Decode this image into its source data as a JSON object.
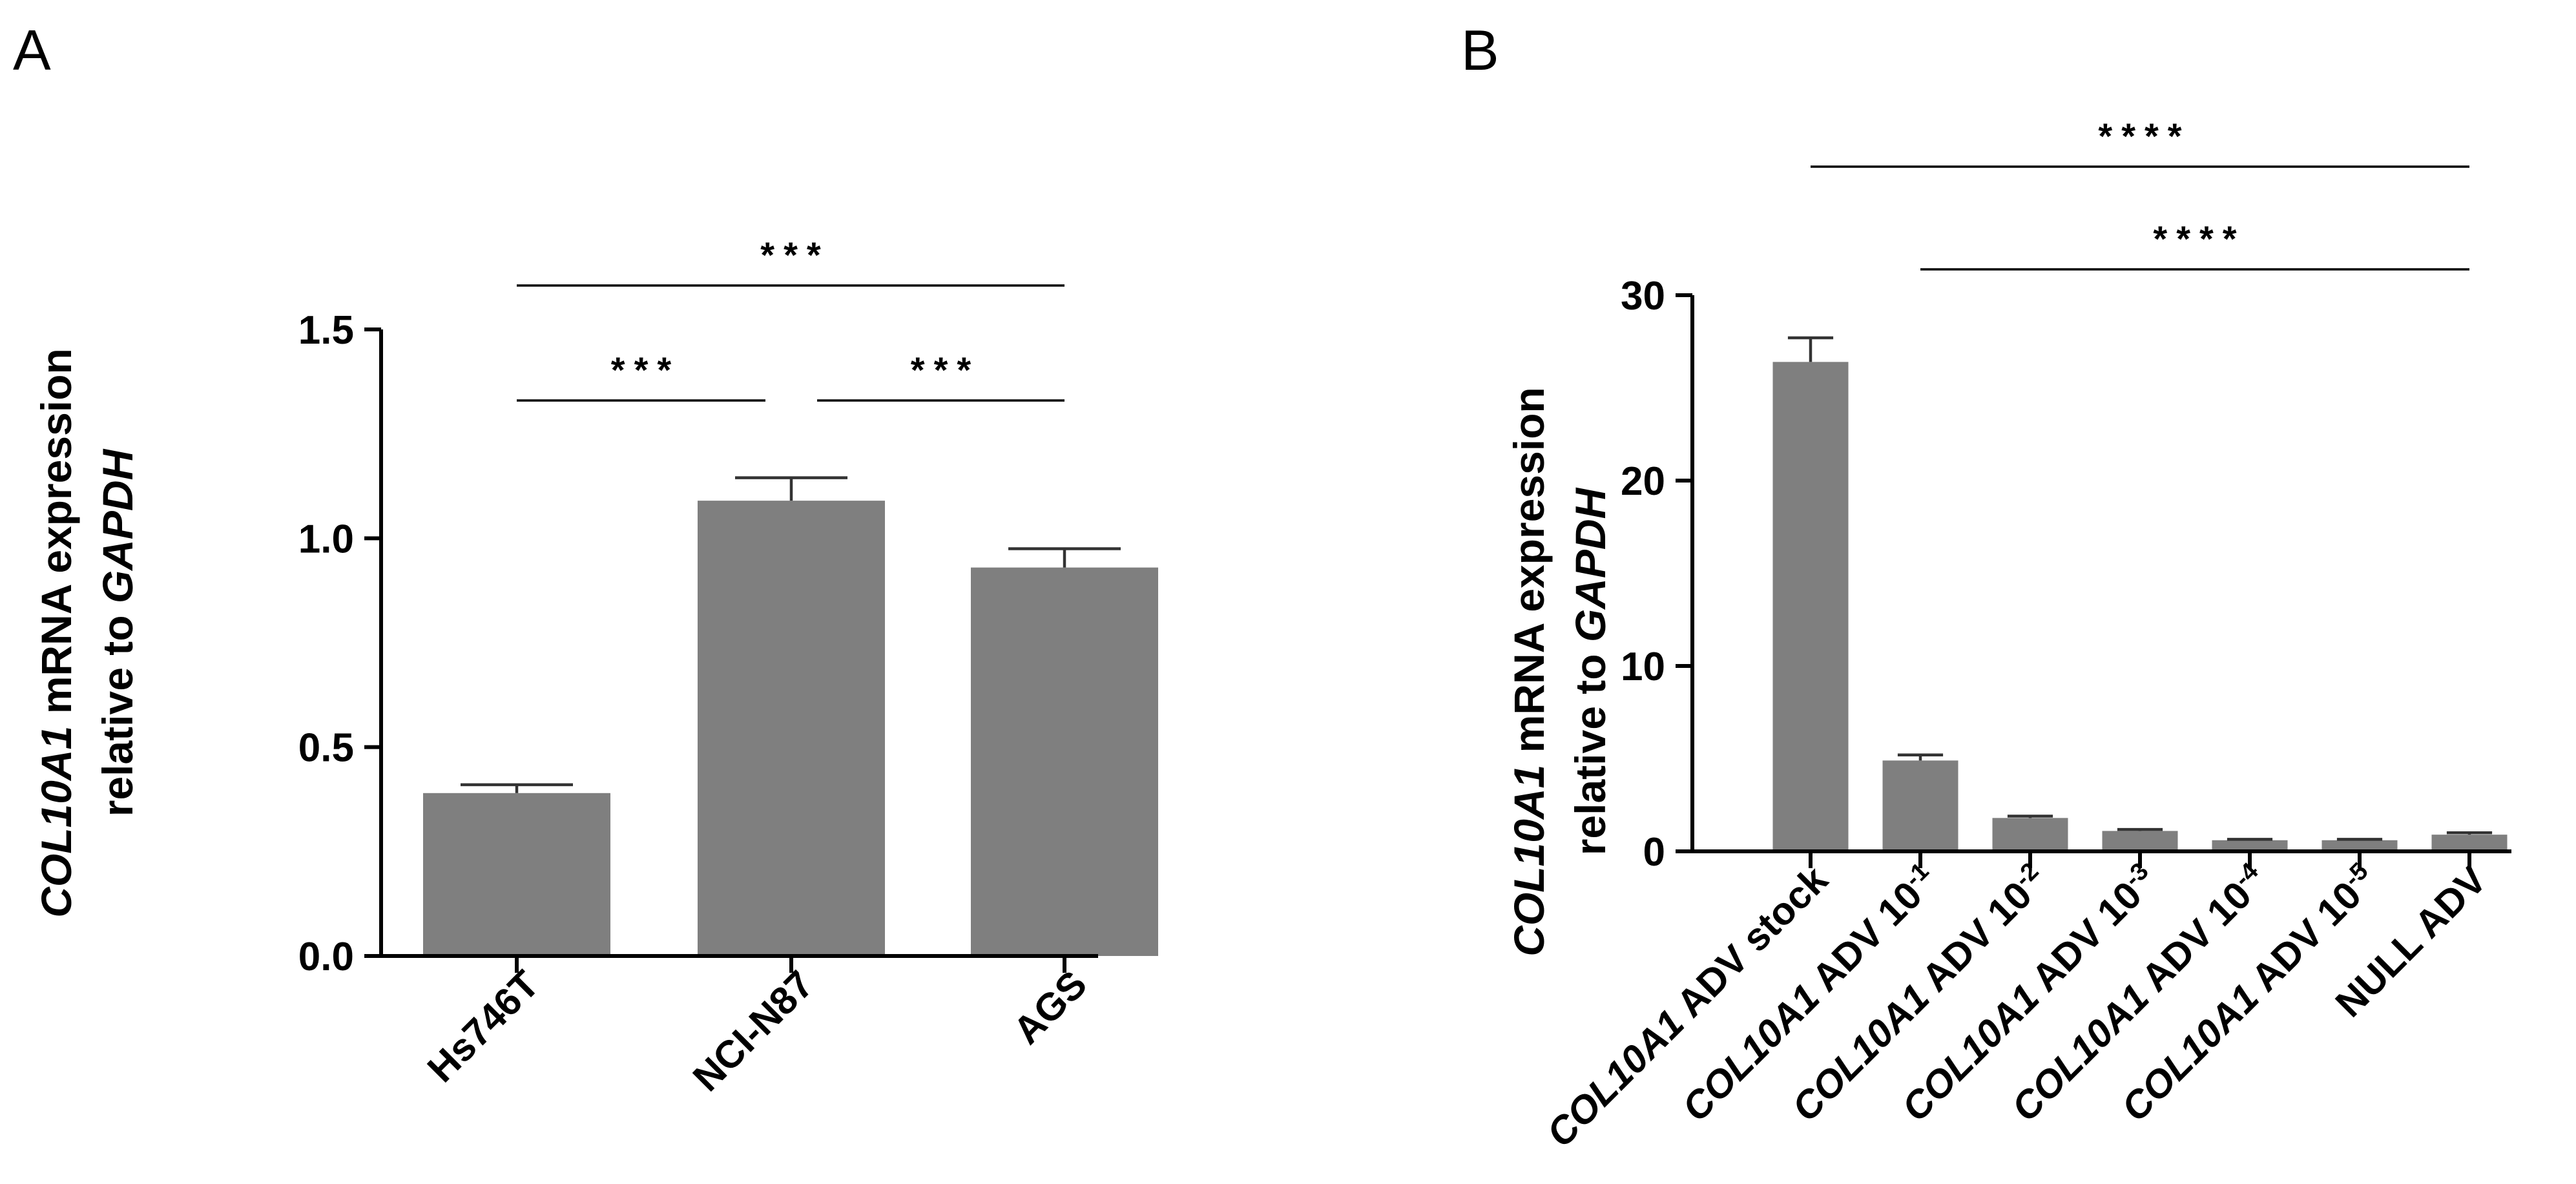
{
  "chart_data": [
    {
      "panel": "A",
      "type": "bar",
      "ylabel": {
        "italic": "COL10A1",
        "rest": " mRNA expression",
        "line2_plain": "relative to ",
        "line2_italic": "GAPDH"
      },
      "ylim": [
        0,
        1.5
      ],
      "yticks": [
        0.0,
        0.5,
        1.0,
        1.5
      ],
      "ytick_labels": [
        "0.0",
        "0.5",
        "1.0",
        "1.5"
      ],
      "categories": [
        {
          "parts": [
            {
              "t": "Hs746T"
            }
          ]
        },
        {
          "parts": [
            {
              "t": "NCI-N87"
            }
          ]
        },
        {
          "parts": [
            {
              "t": "AGS"
            }
          ]
        }
      ],
      "values": [
        0.39,
        1.09,
        0.93
      ],
      "errors": [
        0.02,
        0.055,
        0.045
      ],
      "significance": [
        {
          "from": 0,
          "to": 1,
          "label": "***"
        },
        {
          "from": 1,
          "to": 2,
          "label": "***"
        },
        {
          "from": 0,
          "to": 2,
          "label": "***"
        }
      ]
    },
    {
      "panel": "B",
      "type": "bar",
      "ylabel": {
        "italic": "COL10A1",
        "rest": " mRNA expression",
        "line2_plain": "relative to ",
        "line2_italic": "GAPDH"
      },
      "ylim": [
        0,
        30
      ],
      "yticks": [
        0,
        10,
        20,
        30
      ],
      "ytick_labels": [
        "0",
        "10",
        "20",
        "30"
      ],
      "categories": [
        {
          "parts": [
            {
              "t": "COL10A1",
              "i": true
            },
            {
              "t": " ADV stock"
            }
          ]
        },
        {
          "parts": [
            {
              "t": "COL10A1",
              "i": true
            },
            {
              "t": " ADV 10"
            },
            {
              "t": "-1",
              "sup": true
            }
          ]
        },
        {
          "parts": [
            {
              "t": "COL10A1",
              "i": true
            },
            {
              "t": " ADV 10"
            },
            {
              "t": "-2",
              "sup": true
            }
          ]
        },
        {
          "parts": [
            {
              "t": "COL10A1",
              "i": true
            },
            {
              "t": " ADV 10"
            },
            {
              "t": "-3",
              "sup": true
            }
          ]
        },
        {
          "parts": [
            {
              "t": "COL10A1",
              "i": true
            },
            {
              "t": " ADV 10"
            },
            {
              "t": "-4",
              "sup": true
            }
          ]
        },
        {
          "parts": [
            {
              "t": "COL10A1",
              "i": true
            },
            {
              "t": " ADV 10"
            },
            {
              "t": "-5",
              "sup": true
            }
          ]
        },
        {
          "parts": [
            {
              "t": "NULL ADV"
            }
          ]
        }
      ],
      "values": [
        26.4,
        4.9,
        1.8,
        1.1,
        0.6,
        0.6,
        0.9
      ],
      "errors": [
        1.3,
        0.3,
        0.1,
        0.08,
        0.05,
        0.05,
        0.1
      ],
      "significance": [
        {
          "from": 0,
          "to": 6,
          "label": "****"
        },
        {
          "from": 1,
          "to": 6,
          "label": "****"
        }
      ]
    }
  ]
}
